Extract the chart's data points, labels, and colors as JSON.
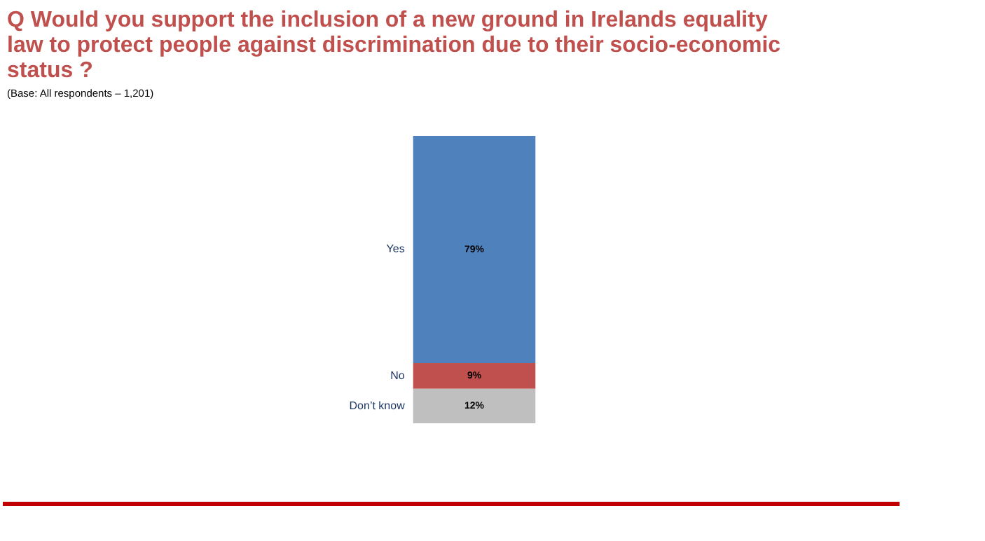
{
  "chart_data": {
    "type": "bar",
    "title": "Q Would you support the inclusion of a new ground in Irelands equality law to protect people against discrimination due to their socio-economic status ?",
    "subtitle": "(Base: All respondents – 1,201)",
    "categories": [
      null
    ],
    "stacked": true,
    "ylim": [
      0,
      100
    ],
    "grid": false,
    "legend": false,
    "series": [
      {
        "name": "Don’t know",
        "color": "#bfbfbf",
        "values": [
          12
        ],
        "value_labels": [
          "12%"
        ]
      },
      {
        "name": "No",
        "color": "#c0504d",
        "values": [
          9
        ],
        "value_labels": [
          "9%"
        ]
      },
      {
        "name": "Yes",
        "color": "#4f81bd",
        "values": [
          79
        ],
        "value_labels": [
          "79%"
        ]
      }
    ]
  }
}
